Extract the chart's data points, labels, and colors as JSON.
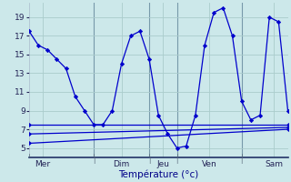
{
  "background_color": "#cce8ea",
  "grid_color": "#aacccc",
  "line_color": "#0000cc",
  "marker_color": "#0000cc",
  "xlabel": "Température (°c)",
  "yticks": [
    5,
    7,
    9,
    11,
    13,
    15,
    17,
    19
  ],
  "ylim": [
    4.0,
    20.5
  ],
  "xlim": [
    0,
    28
  ],
  "day_x": [
    0,
    7,
    13,
    16,
    23,
    28
  ],
  "xtick_positions": [
    1.5,
    10,
    14.5,
    19.5,
    27
  ],
  "xtick_labels": [
    "Mer",
    "Dim",
    "Jeu",
    "Ven",
    "Sam"
  ],
  "vline_x": [
    0,
    7,
    13,
    16,
    23,
    28
  ],
  "series_main": {
    "x": [
      0,
      1,
      2,
      3,
      4,
      5,
      6,
      7,
      8,
      9,
      10,
      11,
      12,
      13,
      14,
      15,
      16,
      17,
      18,
      19,
      20,
      21,
      22,
      23,
      24,
      25,
      26,
      27,
      28
    ],
    "y": [
      17.5,
      16.0,
      15.5,
      14.5,
      13.5,
      10.5,
      9.0,
      7.5,
      7.5,
      9.0,
      14.0,
      17.0,
      17.5,
      14.5,
      8.5,
      6.5,
      5.0,
      5.2,
      8.5,
      16.0,
      19.5,
      20.0,
      17.0,
      10.0,
      8.0,
      8.5,
      19.0,
      18.5,
      9.0
    ]
  },
  "series_flat": [
    {
      "x": [
        0,
        28
      ],
      "y": [
        7.5,
        7.5
      ]
    },
    {
      "x": [
        0,
        28
      ],
      "y": [
        6.5,
        7.2
      ]
    },
    {
      "x": [
        0,
        28
      ],
      "y": [
        5.5,
        7.0
      ]
    }
  ]
}
